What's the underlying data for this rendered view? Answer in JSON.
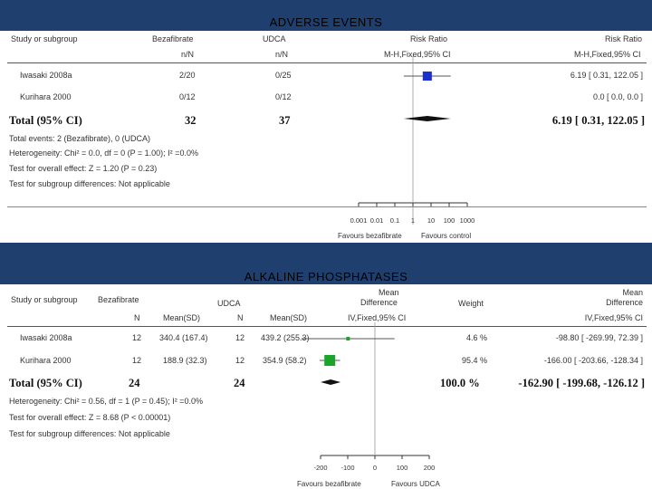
{
  "slide": {
    "banner_color": "#1f3f6e",
    "top_title": "ADVERSE EVENTS",
    "bottom_title": "ALKALINE PHOSPHATASES"
  },
  "adverse": {
    "headers": {
      "study": "Study or subgroup",
      "g1": "Bezafibrate",
      "g2": "UDCA",
      "effect": "Risk Ratio",
      "effect2": "Risk Ratio",
      "g1_sub": "n/N",
      "g2_sub": "n/N",
      "method": "M-H,Fixed,95% CI",
      "method2": "M-H,Fixed,95% CI"
    },
    "rows": [
      {
        "study": "Iwasaki 2008a",
        "g1": "2/20",
        "g2": "0/25",
        "ci": "6.19 [ 0.31, 122.05 ]",
        "rr": 6.19,
        "lo": 0.31,
        "hi": 122.05
      },
      {
        "study": "Kurihara 2000",
        "g1": "0/12",
        "g2": "0/12",
        "ci": "0.0 [ 0.0, 0.0 ]"
      }
    ],
    "total": {
      "label": "Total (95% CI)",
      "g1": "32",
      "g2": "37",
      "ci": "6.19 [ 0.31, 122.05 ]",
      "rr": 6.19,
      "lo": 0.31,
      "hi": 122.05
    },
    "notes": [
      "Total events: 2 (Bezafibrate), 0 (UDCA)",
      "Heterogeneity: Chi² = 0.0, df = 0 (P = 1.00); I² =0.0%",
      "Test for overall effect: Z = 1.20 (P = 0.23)",
      "Test for subgroup differences: Not applicable"
    ],
    "axis": {
      "ticks": [
        0.001,
        0.01,
        0.1,
        1,
        10,
        100,
        1000
      ],
      "tick_labels": [
        "0.001",
        "0.01",
        "0.1",
        "1",
        "10",
        "100",
        "1000"
      ],
      "scale": "log",
      "favours_left": "Favours bezafibrate",
      "favours_right": "Favours control"
    },
    "box_color": "#1a2fd0"
  },
  "alkaline": {
    "headers": {
      "study": "Study or subgroup",
      "g1": "Bezafibrate",
      "g2": "UDCA",
      "n": "N",
      "mean": "Mean(SD)",
      "n2": "N",
      "mean2": "Mean(SD)",
      "md1": "Mean",
      "md2": "Difference",
      "md3": "IV,Fixed,95% CI",
      "weight": "Weight",
      "mdr1": "Mean",
      "mdr2": "Difference",
      "mdr3": "IV,Fixed,95% CI"
    },
    "rows": [
      {
        "study": "Iwasaki 2008a",
        "n1": "12",
        "m1": "340.4 (167.4)",
        "n2": "12",
        "m2": "439.2 (255.3)",
        "weight": "4.6 %",
        "ci": "-98.80 [ -269.99, 72.39 ]",
        "md": -98.8,
        "lo": -269.99,
        "hi": 72.39
      },
      {
        "study": "Kurihara 2000",
        "n1": "12",
        "m1": "188.9 (32.3)",
        "n2": "12",
        "m2": "354.9 (58.2)",
        "weight": "95.4 %",
        "ci": "-166.00 [ -203.66, -128.34 ]",
        "md": -166.0,
        "lo": -203.66,
        "hi": -128.34
      }
    ],
    "total": {
      "label": "Total (95% CI)",
      "n1": "24",
      "n2": "24",
      "weight": "100.0 %",
      "ci": "-162.90 [ -199.68, -126.12 ]",
      "md": -162.9,
      "lo": -199.68,
      "hi": -126.12
    },
    "notes": [
      "Heterogeneity: Chi² = 0.56, df = 1 (P = 0.45); I² =0.0%",
      "Test for overall effect: Z = 8.68 (P < 0.00001)",
      "Test for subgroup differences: Not applicable"
    ],
    "axis": {
      "ticks": [
        -200,
        -100,
        0,
        100,
        200
      ],
      "tick_labels": [
        "-200",
        "-100",
        "0",
        "100",
        "200"
      ],
      "favours_left": "Favours bezafibrate",
      "favours_right": "Favours UDCA"
    },
    "box_color": "#1aa52a"
  }
}
